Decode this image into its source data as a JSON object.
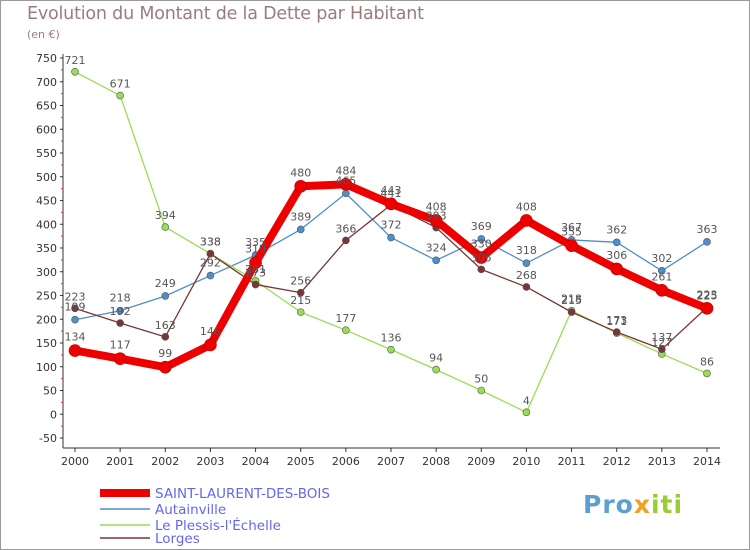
{
  "title": "Evolution du Montant de la Dette par Habitant",
  "unit_label": "(en €)",
  "logo": {
    "parts": [
      "Pro",
      "x",
      "iti"
    ]
  },
  "chart_data": {
    "type": "line",
    "title": "Evolution du Montant de la Dette par Habitant",
    "ylabel": "(en €)",
    "xlabel": "",
    "x": [
      2000,
      2001,
      2002,
      2003,
      2004,
      2005,
      2006,
      2007,
      2008,
      2009,
      2010,
      2011,
      2012,
      2013,
      2014
    ],
    "ylim": [
      -50,
      750
    ],
    "yticks": [
      -50,
      0,
      50,
      100,
      150,
      200,
      250,
      300,
      350,
      400,
      450,
      500,
      550,
      600,
      650,
      700,
      750
    ],
    "grid": false,
    "legend_position": "bottom-left",
    "series": [
      {
        "name": "SAINT-LAURENT-DES-BOIS",
        "color": "#ee0000",
        "values": [
          134,
          117,
          99,
          146,
          319,
          480,
          484,
          443,
          408,
          330,
          408,
          355,
          306,
          261,
          223
        ]
      },
      {
        "name": "Autainville",
        "color": "#4f8fc9",
        "values": [
          199,
          218,
          249,
          292,
          335,
          389,
          465,
          372,
          324,
          369,
          318,
          367,
          362,
          302,
          363
        ]
      },
      {
        "name": "Le Plessis-l'Échelle",
        "color": "#99dd55",
        "values": [
          721,
          671,
          394,
          338,
          281,
          215,
          177,
          136,
          94,
          50,
          4,
          218,
          171,
          127,
          86
        ]
      },
      {
        "name": "Lorges",
        "color": "#7a3535",
        "values": [
          223,
          192,
          163,
          338,
          273,
          256,
          366,
          441,
          393,
          305,
          268,
          215,
          173,
          137,
          225
        ]
      }
    ]
  }
}
